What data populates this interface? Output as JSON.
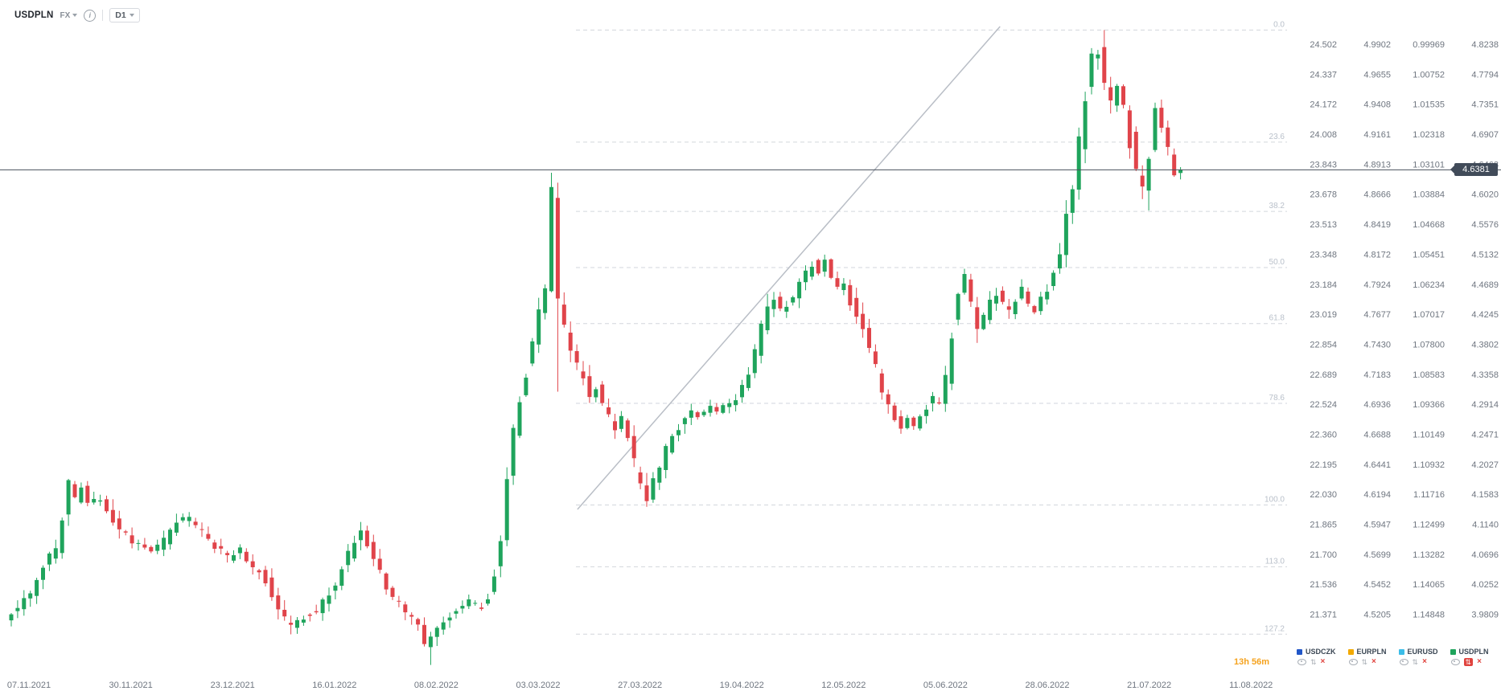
{
  "symbol_bar": {
    "symbol": "USDPLN",
    "market_tag": "FX",
    "timeframe": "D1"
  },
  "chart_data": {
    "type": "candlestick",
    "symbol": "USDPLN",
    "timeframe": "D1",
    "current_price": "4.6381",
    "colors": {
      "up": "#1fa45c",
      "down": "#e0444a",
      "fib_line": "#d2d6dc",
      "fib_label": "#b9c0ca",
      "trend_line": "#b9bec6",
      "price_line": "#4a515c",
      "axis_text": "#6f7680"
    },
    "x_axis_dates": [
      "07.11.2021",
      "30.11.2021",
      "23.12.2021",
      "16.01.2022",
      "08.02.2022",
      "03.03.2022",
      "27.03.2022",
      "19.04.2022",
      "12.05.2022",
      "05.06.2022",
      "28.06.2022",
      "21.07.2022",
      "11.08.2022"
    ],
    "price_scales": {
      "columns": [
        {
          "name": "USDCZK",
          "values": [
            "24.502",
            "24.337",
            "24.172",
            "24.008",
            "23.843",
            "23.678",
            "23.513",
            "23.348",
            "23.184",
            "23.019",
            "22.854",
            "22.689",
            "22.524",
            "22.360",
            "22.195",
            "22.030",
            "21.865",
            "21.700",
            "21.536",
            "21.371"
          ]
        },
        {
          "name": "EURPLN",
          "values": [
            "4.9902",
            "4.9655",
            "4.9408",
            "4.9161",
            "4.8913",
            "4.8666",
            "4.8419",
            "4.8172",
            "4.7924",
            "4.7677",
            "4.7430",
            "4.7183",
            "4.6936",
            "4.6688",
            "4.6441",
            "4.6194",
            "4.5947",
            "4.5699",
            "4.5452",
            "4.5205"
          ]
        },
        {
          "name": "EURUSD",
          "values": [
            "0.99969",
            "1.00752",
            "1.01535",
            "1.02318",
            "1.03101",
            "1.03884",
            "1.04668",
            "1.05451",
            "1.06234",
            "1.07017",
            "1.07800",
            "1.08583",
            "1.09366",
            "1.10149",
            "1.10932",
            "1.11716",
            "1.12499",
            "1.13282",
            "1.14065",
            "1.14848"
          ]
        },
        {
          "name": "USDPLN",
          "values": [
            "4.8238",
            "4.7794",
            "4.7351",
            "4.6907",
            "4.6463",
            "4.6020",
            "4.5576",
            "4.5132",
            "4.4689",
            "4.4245",
            "4.3802",
            "4.3358",
            "4.2914",
            "4.2471",
            "4.2027",
            "4.1583",
            "4.1140",
            "4.0696",
            "4.0252",
            "3.9809"
          ]
        }
      ]
    },
    "fibonacci_levels": [
      {
        "label": "0.0",
        "price": 4.8447
      },
      {
        "label": "23.6",
        "price": 4.679
      },
      {
        "label": "38.2",
        "price": 4.5765
      },
      {
        "label": "50.0",
        "price": 4.4936
      },
      {
        "label": "61.8",
        "price": 4.4107
      },
      {
        "label": "78.6",
        "price": 4.2928
      },
      {
        "label": "100.0",
        "price": 4.1425
      },
      {
        "label": "113.0",
        "price": 4.0512
      },
      {
        "label": "127.2",
        "price": 3.9515
      }
    ],
    "trend_line": {
      "from": {
        "index": 89.1,
        "price": 4.136
      },
      "to": {
        "index": 155.6,
        "price": 4.85
      }
    },
    "price_path_anchors": [
      [
        0,
        3.972
      ],
      [
        2,
        3.992
      ],
      [
        4,
        4.012
      ],
      [
        6,
        4.048
      ],
      [
        8,
        4.082
      ],
      [
        10,
        4.17
      ],
      [
        11,
        4.148
      ],
      [
        12,
        4.168
      ],
      [
        13,
        4.142
      ],
      [
        15,
        4.152
      ],
      [
        17,
        4.118
      ],
      [
        19,
        4.098
      ],
      [
        21,
        4.082
      ],
      [
        23,
        4.072
      ],
      [
        25,
        4.09
      ],
      [
        27,
        4.118
      ],
      [
        29,
        4.122
      ],
      [
        31,
        4.102
      ],
      [
        33,
        4.082
      ],
      [
        35,
        4.064
      ],
      [
        37,
        4.075
      ],
      [
        39,
        4.052
      ],
      [
        41,
        4.032
      ],
      [
        43,
        3.992
      ],
      [
        45,
        3.958
      ],
      [
        47,
        3.978
      ],
      [
        49,
        3.988
      ],
      [
        51,
        4.012
      ],
      [
        53,
        4.048
      ],
      [
        55,
        4.088
      ],
      [
        56,
        4.102
      ],
      [
        57,
        4.085
      ],
      [
        58,
        4.058
      ],
      [
        59,
        4.038
      ],
      [
        61,
        4.005
      ],
      [
        63,
        3.985
      ],
      [
        65,
        3.962
      ],
      [
        66,
        3.932
      ],
      [
        67,
        3.952
      ],
      [
        69,
        3.975
      ],
      [
        71,
        3.985
      ],
      [
        73,
        3.998
      ],
      [
        75,
        3.992
      ],
      [
        76,
        4.008
      ],
      [
        77,
        4.038
      ],
      [
        78,
        4.102
      ],
      [
        79,
        4.178
      ],
      [
        80,
        4.248
      ],
      [
        81,
        4.302
      ],
      [
        82,
        4.338
      ],
      [
        83,
        4.388
      ],
      [
        84,
        4.428
      ],
      [
        85,
        4.462
      ],
      [
        86,
        4.602
      ],
      [
        87,
        4.442
      ],
      [
        88,
        4.402
      ],
      [
        89,
        4.368
      ],
      [
        90,
        4.342
      ],
      [
        91,
        4.325
      ],
      [
        92,
        4.302
      ],
      [
        93,
        4.318
      ],
      [
        94,
        4.292
      ],
      [
        95,
        4.272
      ],
      [
        96,
        4.252
      ],
      [
        97,
        4.272
      ],
      [
        98,
        4.238
      ],
      [
        99,
        4.202
      ],
      [
        100,
        4.168
      ],
      [
        101,
        4.152
      ],
      [
        102,
        4.178
      ],
      [
        103,
        4.202
      ],
      [
        104,
        4.228
      ],
      [
        105,
        4.242
      ],
      [
        106,
        4.258
      ],
      [
        107,
        4.272
      ],
      [
        108,
        4.282
      ],
      [
        109,
        4.272
      ],
      [
        110,
        4.282
      ],
      [
        111,
        4.288
      ],
      [
        112,
        4.278
      ],
      [
        113,
        4.288
      ],
      [
        114,
        4.292
      ],
      [
        115,
        4.302
      ],
      [
        116,
        4.318
      ],
      [
        117,
        4.342
      ],
      [
        118,
        4.372
      ],
      [
        119,
        4.402
      ],
      [
        120,
        4.428
      ],
      [
        121,
        4.452
      ],
      [
        122,
        4.432
      ],
      [
        123,
        4.438
      ],
      [
        124,
        4.452
      ],
      [
        125,
        4.468
      ],
      [
        126,
        4.482
      ],
      [
        127,
        4.502
      ],
      [
        128,
        4.488
      ],
      [
        129,
        4.502
      ],
      [
        130,
        4.482
      ],
      [
        131,
        4.458
      ],
      [
        132,
        4.468
      ],
      [
        133,
        4.442
      ],
      [
        134,
        4.422
      ],
      [
        135,
        4.402
      ],
      [
        136,
        4.372
      ],
      [
        137,
        4.342
      ],
      [
        138,
        4.312
      ],
      [
        139,
        4.288
      ],
      [
        140,
        4.272
      ],
      [
        141,
        4.258
      ],
      [
        142,
        4.272
      ],
      [
        143,
        4.258
      ],
      [
        144,
        4.272
      ],
      [
        145,
        4.288
      ],
      [
        146,
        4.298
      ],
      [
        147,
        4.292
      ],
      [
        148,
        4.332
      ],
      [
        149,
        4.402
      ],
      [
        150,
        4.458
      ],
      [
        151,
        4.472
      ],
      [
        152,
        4.442
      ],
      [
        153,
        4.408
      ],
      [
        154,
        4.422
      ],
      [
        155,
        4.442
      ],
      [
        156,
        4.458
      ],
      [
        157,
        4.442
      ],
      [
        158,
        4.428
      ],
      [
        159,
        4.442
      ],
      [
        160,
        4.458
      ],
      [
        161,
        4.442
      ],
      [
        162,
        4.432
      ],
      [
        163,
        4.448
      ],
      [
        164,
        4.462
      ],
      [
        165,
        4.492
      ],
      [
        166,
        4.522
      ],
      [
        167,
        4.568
      ],
      [
        168,
        4.622
      ],
      [
        169,
        4.682
      ],
      [
        170,
        4.748
      ],
      [
        171,
        4.802
      ],
      [
        172,
        4.818
      ],
      [
        173,
        4.772
      ],
      [
        174,
        4.732
      ],
      [
        175,
        4.762
      ],
      [
        176,
        4.732
      ],
      [
        177,
        4.682
      ],
      [
        178,
        4.642
      ],
      [
        179,
        4.602
      ],
      [
        180,
        4.658
      ],
      [
        181,
        4.722
      ],
      [
        182,
        4.702
      ],
      [
        183,
        4.662
      ],
      [
        184,
        4.638
      ]
    ],
    "forced_extremes": [
      {
        "index": 45,
        "low": 3.952
      },
      {
        "index": 66,
        "low": 3.906
      },
      {
        "index": 86,
        "high": 4.619,
        "low": 4.31
      },
      {
        "index": 172,
        "high": 4.8447
      },
      {
        "index": 179,
        "low": 4.578
      },
      {
        "index": 181,
        "high": 4.742
      }
    ]
  },
  "legend": {
    "items": [
      {
        "label": "USDCZK",
        "color": "#2156c8",
        "active": false
      },
      {
        "label": "EURPLN",
        "color": "#f2a900",
        "active": false
      },
      {
        "label": "EURUSD",
        "color": "#3bbde8",
        "active": false
      },
      {
        "label": "USDPLN",
        "color": "#1fa45c",
        "active": true
      }
    ],
    "countdown": "13h 56m"
  }
}
